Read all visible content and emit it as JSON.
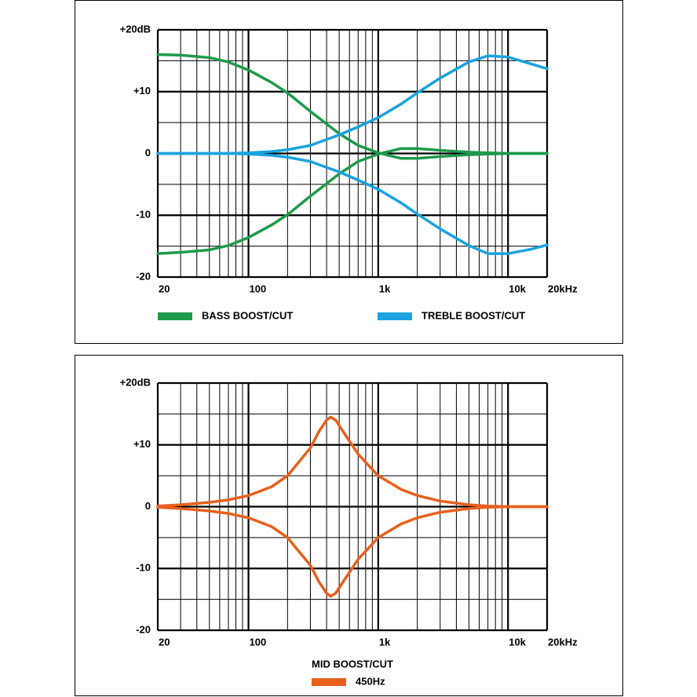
{
  "chart_data": [
    {
      "type": "line",
      "log_x": true,
      "grid": true,
      "xlim": [
        20,
        20000
      ],
      "ylim": [
        -20,
        20
      ],
      "xticks": [
        20,
        100,
        {
          "value": 1000,
          "label": "1k"
        },
        {
          "value": 10000,
          "label": "10k"
        },
        {
          "value": 20000,
          "label": "20kHz"
        }
      ],
      "yticks": [
        {
          "value": 20,
          "label": "+20dB"
        },
        {
          "value": 10,
          "label": "+10"
        },
        0,
        -10,
        -20
      ],
      "xgrid": [
        30,
        40,
        50,
        60,
        70,
        80,
        90,
        200,
        300,
        400,
        500,
        600,
        700,
        800,
        900,
        2000,
        3000,
        4000,
        5000,
        6000,
        7000,
        8000,
        9000
      ],
      "ygrid": [
        -15,
        -5,
        5,
        15
      ],
      "x": [
        20,
        30,
        50,
        70,
        100,
        150,
        200,
        300,
        500,
        700,
        1000,
        1500,
        2000,
        3000,
        5000,
        7000,
        10000,
        15000,
        20000
      ],
      "series": [
        {
          "name": "BASS BOOST/CUT",
          "color": "#1e9a4a",
          "values": [
            16,
            15.9,
            15.5,
            14.8,
            13.5,
            11.5,
            9.8,
            6.8,
            3.2,
            1.3,
            0.1,
            -0.8,
            -0.8,
            -0.5,
            -0.2,
            -0.1,
            0,
            0,
            0
          ],
          "cut": [
            -16.2,
            -16,
            -15.6,
            -14.9,
            -13.6,
            -11.6,
            -9.9,
            -6.9,
            -3.3,
            -1.3,
            -0.1,
            0.8,
            0.8,
            0.5,
            0.2,
            0.1,
            0,
            0,
            0
          ]
        },
        {
          "name": "TREBLE BOOST/CUT",
          "color": "#1aa3e0",
          "values": [
            0,
            0,
            0,
            0,
            0.1,
            0.3,
            0.6,
            1.3,
            3,
            4.3,
            5.8,
            8,
            9.8,
            12.2,
            14.8,
            15.8,
            15.6,
            14.5,
            13.7
          ],
          "cut": [
            0,
            0,
            0,
            0,
            -0.1,
            -0.3,
            -0.6,
            -1.3,
            -3,
            -4.3,
            -5.8,
            -8,
            -9.8,
            -12.2,
            -14.9,
            -16.2,
            -16.2,
            -15.5,
            -14.8
          ]
        }
      ]
    },
    {
      "type": "line",
      "log_x": true,
      "grid": true,
      "xlim": [
        20,
        20000
      ],
      "ylim": [
        -20,
        20
      ],
      "xticks": [
        20,
        100,
        {
          "value": 1000,
          "label": "1k"
        },
        {
          "value": 10000,
          "label": "10k"
        },
        {
          "value": 20000,
          "label": "20kHz"
        }
      ],
      "yticks": [
        {
          "value": 20,
          "label": "+20dB"
        },
        {
          "value": 10,
          "label": "+10"
        },
        0,
        -10,
        -20
      ],
      "xgrid": [
        30,
        40,
        50,
        60,
        70,
        80,
        90,
        200,
        300,
        400,
        500,
        600,
        700,
        800,
        900,
        2000,
        3000,
        4000,
        5000,
        6000,
        7000,
        8000,
        9000
      ],
      "ygrid": [
        -15,
        -5,
        5,
        15
      ],
      "legend_title": "MID BOOST/CUT",
      "x": [
        20,
        30,
        50,
        70,
        100,
        150,
        200,
        300,
        350,
        400,
        430,
        470,
        550,
        700,
        1000,
        1500,
        2000,
        3000,
        5000,
        7000,
        10000,
        20000
      ],
      "series": [
        {
          "name": "450Hz",
          "color": "#e8601c",
          "values": [
            0.1,
            0.3,
            0.7,
            1.1,
            1.8,
            3.2,
            5,
            9.5,
            12.2,
            14,
            14.5,
            14,
            11.8,
            8.5,
            5,
            2.8,
            1.8,
            0.9,
            0.3,
            0.1,
            0,
            0
          ],
          "cut": [
            -0.1,
            -0.3,
            -0.7,
            -1.1,
            -1.8,
            -3.2,
            -5,
            -9.5,
            -12.2,
            -14,
            -14.5,
            -14,
            -11.8,
            -8.5,
            -5,
            -2.8,
            -1.8,
            -0.9,
            -0.3,
            -0.1,
            0,
            0
          ]
        }
      ]
    }
  ]
}
